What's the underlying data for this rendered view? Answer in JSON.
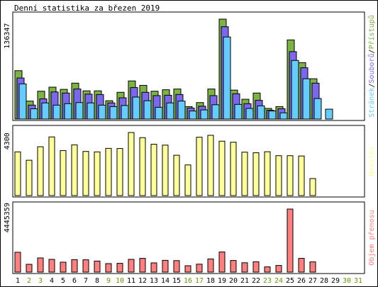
{
  "title": "Denní statistika za březen 2019",
  "colors": {
    "hits": "#7cb342",
    "files": "#7b68ee",
    "pages": "#66ccff",
    "visits": "#ffff99",
    "kbytes": "#ff7f7f",
    "weekday_label": "#000000",
    "weekend_label": "#669900"
  },
  "chart_data": [
    {
      "type": "bar",
      "panel": "traffic",
      "series": [
        {
          "name": "Přístupů",
          "color": "#7cb342",
          "values": [
            66000,
            24500,
            38000,
            43500,
            40500,
            49000,
            38500,
            38500,
            25000,
            36500,
            52000,
            46000,
            38000,
            40000,
            41000,
            17000,
            22500,
            41000,
            136347,
            39500,
            27000,
            35500,
            14500,
            17000,
            108000,
            77000,
            55000,
            0,
            0,
            0,
            0
          ]
        },
        {
          "name": "Souborů",
          "color": "#7b68ee",
          "values": [
            56000,
            19000,
            27500,
            37000,
            35500,
            41000,
            34000,
            33500,
            22000,
            29000,
            43000,
            36500,
            32000,
            32500,
            33500,
            15000,
            17500,
            32000,
            126000,
            34500,
            21000,
            25500,
            12000,
            14000,
            92000,
            70000,
            49000,
            0,
            0,
            0,
            0
          ]
        },
        {
          "name": "Stránek",
          "color": "#66ccff",
          "values": [
            48000,
            14000,
            22000,
            19000,
            21000,
            22500,
            22000,
            19000,
            17000,
            18500,
            30000,
            25000,
            16000,
            22000,
            24500,
            11000,
            12500,
            19500,
            112000,
            20000,
            14500,
            18000,
            11000,
            8500,
            80000,
            55000,
            28000,
            13500,
            0,
            0,
            0
          ]
        }
      ],
      "y_max_label": "136347",
      "legend": [
        "Stránek",
        "Souborů",
        "Přístupů"
      ]
    },
    {
      "type": "bar",
      "panel": "visits",
      "series": [
        {
          "name": "Návštěv",
          "color": "#ffff99",
          "values": [
            2980,
            2410,
            3330,
            4000,
            3070,
            3460,
            3010,
            2980,
            3220,
            3210,
            4300,
            3950,
            3500,
            3440,
            2750,
            2090,
            3980,
            4110,
            3710,
            3640,
            2960,
            2920,
            2990,
            2720,
            2720,
            2700,
            1160,
            0,
            0,
            0,
            0
          ]
        }
      ],
      "y_max_label": "4300",
      "legend": [
        "Návštěv"
      ]
    },
    {
      "type": "bar",
      "panel": "volume",
      "series": [
        {
          "name": "Objem přenosu",
          "color": "#ff7f7f",
          "values": [
            1400000,
            550000,
            1000000,
            900000,
            700000,
            880000,
            870000,
            780000,
            600000,
            620000,
            900000,
            970000,
            650000,
            830000,
            810000,
            450000,
            560000,
            930000,
            1420000,
            820000,
            660000,
            730000,
            370000,
            470000,
            4445359,
            970000,
            720000,
            0,
            0,
            0,
            0
          ]
        }
      ],
      "y_max_label": "4445359",
      "legend": [
        "Objem přenosu"
      ]
    }
  ],
  "days": [
    {
      "label": "1",
      "weekend": false
    },
    {
      "label": "2",
      "weekend": true
    },
    {
      "label": "3",
      "weekend": true
    },
    {
      "label": "4",
      "weekend": false
    },
    {
      "label": "5",
      "weekend": false
    },
    {
      "label": "6",
      "weekend": false
    },
    {
      "label": "7",
      "weekend": false
    },
    {
      "label": "8",
      "weekend": false
    },
    {
      "label": "9",
      "weekend": true
    },
    {
      "label": "10",
      "weekend": true
    },
    {
      "label": "11",
      "weekend": false
    },
    {
      "label": "12",
      "weekend": false
    },
    {
      "label": "13",
      "weekend": false
    },
    {
      "label": "14",
      "weekend": false
    },
    {
      "label": "15",
      "weekend": false
    },
    {
      "label": "16",
      "weekend": true
    },
    {
      "label": "17",
      "weekend": true
    },
    {
      "label": "18",
      "weekend": false
    },
    {
      "label": "19",
      "weekend": false
    },
    {
      "label": "20",
      "weekend": false
    },
    {
      "label": "21",
      "weekend": false
    },
    {
      "label": "22",
      "weekend": false
    },
    {
      "label": "23",
      "weekend": true
    },
    {
      "label": "24",
      "weekend": true
    },
    {
      "label": "25",
      "weekend": false
    },
    {
      "label": "26",
      "weekend": false
    },
    {
      "label": "27",
      "weekend": false
    },
    {
      "label": "28",
      "weekend": false
    },
    {
      "label": "29",
      "weekend": false
    },
    {
      "label": "30",
      "weekend": true
    },
    {
      "label": "31",
      "weekend": true
    }
  ]
}
